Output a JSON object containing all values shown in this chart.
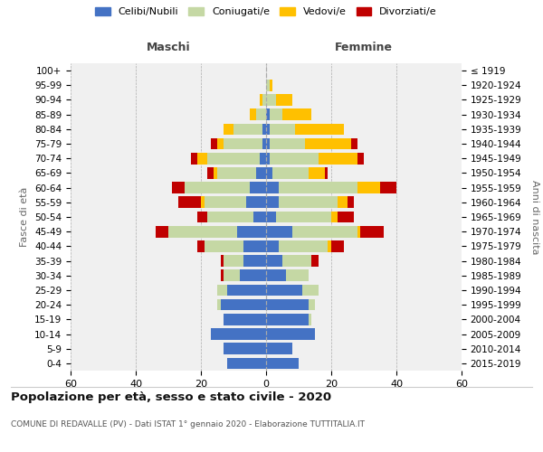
{
  "age_groups": [
    "0-4",
    "5-9",
    "10-14",
    "15-19",
    "20-24",
    "25-29",
    "30-34",
    "35-39",
    "40-44",
    "45-49",
    "50-54",
    "55-59",
    "60-64",
    "65-69",
    "70-74",
    "75-79",
    "80-84",
    "85-89",
    "90-94",
    "95-99",
    "100+"
  ],
  "birth_years": [
    "2015-2019",
    "2010-2014",
    "2005-2009",
    "2000-2004",
    "1995-1999",
    "1990-1994",
    "1985-1989",
    "1980-1984",
    "1975-1979",
    "1970-1974",
    "1965-1969",
    "1960-1964",
    "1955-1959",
    "1950-1954",
    "1945-1949",
    "1940-1944",
    "1935-1939",
    "1930-1934",
    "1925-1929",
    "1920-1924",
    "≤ 1919"
  ],
  "male": {
    "celibi": [
      12,
      13,
      17,
      13,
      14,
      12,
      8,
      7,
      7,
      9,
      4,
      6,
      5,
      3,
      2,
      1,
      1,
      0,
      0,
      0,
      0
    ],
    "coniugati": [
      0,
      0,
      0,
      0,
      1,
      3,
      5,
      6,
      12,
      21,
      14,
      13,
      20,
      12,
      16,
      12,
      9,
      3,
      1,
      0,
      0
    ],
    "vedovi": [
      0,
      0,
      0,
      0,
      0,
      0,
      0,
      0,
      0,
      0,
      0,
      1,
      0,
      1,
      3,
      2,
      3,
      2,
      1,
      0,
      0
    ],
    "divorziati": [
      0,
      0,
      0,
      0,
      0,
      0,
      1,
      1,
      2,
      4,
      3,
      7,
      4,
      2,
      2,
      2,
      0,
      0,
      0,
      0,
      0
    ]
  },
  "female": {
    "nubili": [
      10,
      8,
      15,
      13,
      13,
      11,
      6,
      5,
      4,
      8,
      3,
      4,
      4,
      2,
      1,
      1,
      1,
      1,
      0,
      0,
      0
    ],
    "coniugate": [
      0,
      0,
      0,
      1,
      2,
      5,
      7,
      9,
      15,
      20,
      17,
      18,
      24,
      11,
      15,
      11,
      8,
      4,
      3,
      1,
      0
    ],
    "vedove": [
      0,
      0,
      0,
      0,
      0,
      0,
      0,
      0,
      1,
      1,
      2,
      3,
      7,
      5,
      12,
      14,
      15,
      9,
      5,
      1,
      0
    ],
    "divorziate": [
      0,
      0,
      0,
      0,
      0,
      0,
      0,
      2,
      4,
      7,
      5,
      2,
      5,
      1,
      2,
      2,
      0,
      0,
      0,
      0,
      0
    ]
  },
  "colors": {
    "celibi": "#4472c4",
    "coniugati": "#c5d8a4",
    "vedovi": "#ffc000",
    "divorziati": "#c00000"
  },
  "title": "Popolazione per età, sesso e stato civile - 2020",
  "subtitle": "COMUNE DI REDAVALLE (PV) - Dati ISTAT 1° gennaio 2020 - Elaborazione TUTTITALIA.IT",
  "xlabel_left": "Maschi",
  "xlabel_right": "Femmine",
  "ylabel_left": "Fasce di età",
  "ylabel_right": "Anni di nascita",
  "xlim": 60,
  "bg_color": "#f0f0f0",
  "legend_labels": [
    "Celibi/Nubili",
    "Coniugati/e",
    "Vedovi/e",
    "Divorziati/e"
  ]
}
